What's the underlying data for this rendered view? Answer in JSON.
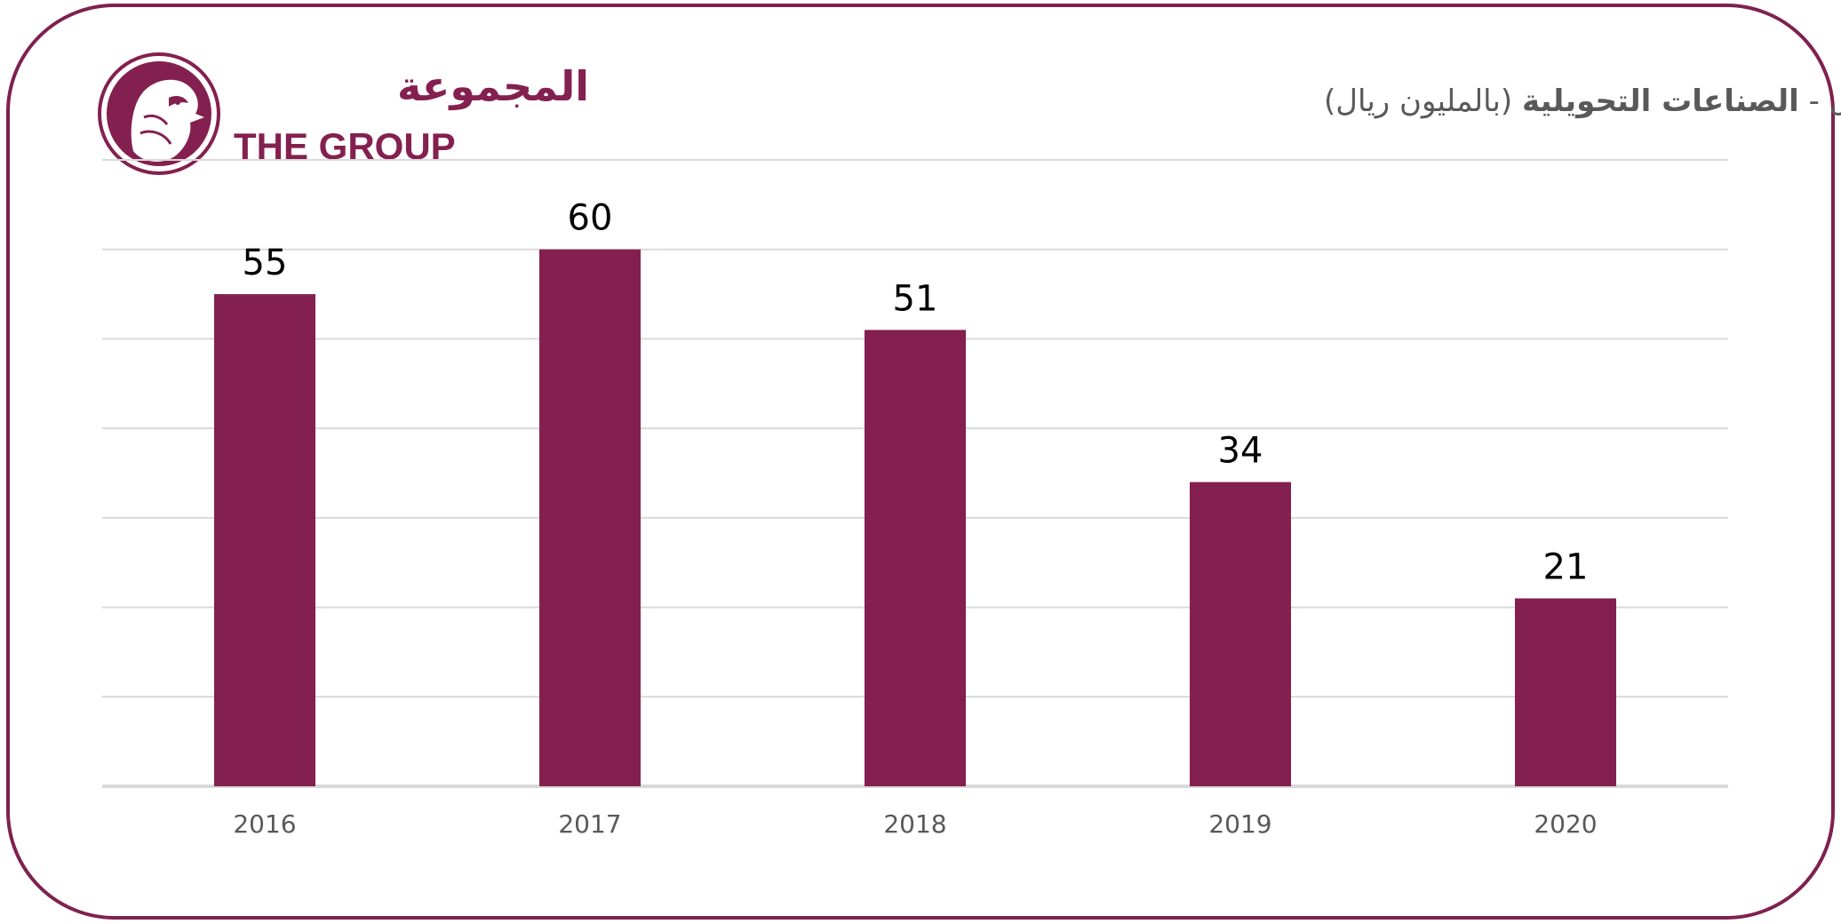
{
  "logo": {
    "arabic_text": "المجموعة",
    "english_text": "THE GROUP"
  },
  "colors": {
    "frame": "#7F2150",
    "bar": "#84204F",
    "grid": "#D9D9D9",
    "axis": "#D9D9D9",
    "title": "#595959",
    "tick": "#595959",
    "label": "#000000"
  },
  "chart_data": {
    "type": "bar",
    "title": "صافي أرباح الربع الاول - الصناعات التحويلية (بالمليون ريال)",
    "title_parts": {
      "prefix": "صافي أرباح الربع الاول - ",
      "bold": "الصناعات التحويلية",
      "suffix": " (بالمليون ريال)"
    },
    "categories": [
      "2016",
      "2017",
      "2018",
      "2019",
      "2020"
    ],
    "values": [
      55,
      60,
      51,
      34,
      21
    ],
    "data_labels": [
      "55",
      "60",
      "51",
      "34",
      "21"
    ],
    "ylim": [
      0,
      70
    ],
    "grid": true,
    "xlabel": "",
    "ylabel": ""
  }
}
